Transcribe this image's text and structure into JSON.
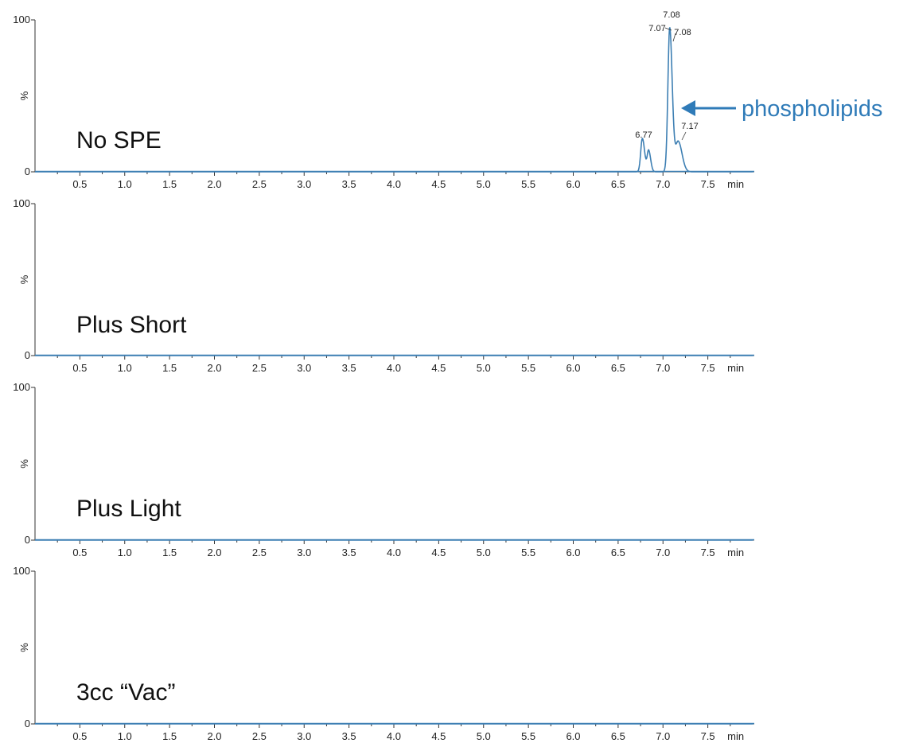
{
  "colors": {
    "trace": "#3d7fb3",
    "axis": "#333333",
    "annotation": "#2f7bb8"
  },
  "chart_data": [
    {
      "type": "line",
      "label": "No SPE",
      "xlim": [
        0,
        8.0
      ],
      "ylim": [
        0,
        100
      ],
      "xticks": [
        "0.5",
        "1.0",
        "1.5",
        "2.0",
        "2.5",
        "3.0",
        "3.5",
        "4.0",
        "4.5",
        "5.0",
        "5.5",
        "6.0",
        "6.5",
        "7.0",
        "7.5"
      ],
      "x_unit": "min",
      "y_ticks": [
        "100",
        "0"
      ],
      "ylabel": "%",
      "peaks": [
        {
          "rt": 6.77,
          "height": 22,
          "width": 0.018
        },
        {
          "rt": 6.84,
          "height": 14,
          "width": 0.016
        },
        {
          "rt": 7.075,
          "height": 95,
          "width": 0.02
        },
        {
          "rt": 7.17,
          "height": 20,
          "width": 0.03
        }
      ],
      "peak_labels": [
        "6.77",
        "7.08",
        "7.07",
        "7.08",
        "7.17"
      ],
      "annotation": "phospholipids"
    },
    {
      "type": "line",
      "label": "Plus Short",
      "xlim": [
        0,
        8.0
      ],
      "ylim": [
        0,
        100
      ],
      "xticks": [
        "0.5",
        "1.0",
        "1.5",
        "2.0",
        "2.5",
        "3.0",
        "3.5",
        "4.0",
        "4.5",
        "5.0",
        "5.5",
        "6.0",
        "6.5",
        "7.0",
        "7.5"
      ],
      "x_unit": "min",
      "y_ticks": [
        "100",
        "0"
      ],
      "ylabel": "%",
      "peaks": []
    },
    {
      "type": "line",
      "label": "Plus Light",
      "xlim": [
        0,
        8.0
      ],
      "ylim": [
        0,
        100
      ],
      "xticks": [
        "0.5",
        "1.0",
        "1.5",
        "2.0",
        "2.5",
        "3.0",
        "3.5",
        "4.0",
        "4.5",
        "5.0",
        "5.5",
        "6.0",
        "6.5",
        "7.0",
        "7.5"
      ],
      "x_unit": "min",
      "y_ticks": [
        "100",
        "0"
      ],
      "ylabel": "%",
      "peaks": []
    },
    {
      "type": "line",
      "label": "3cc “Vac”",
      "xlim": [
        0,
        8.0
      ],
      "ylim": [
        0,
        100
      ],
      "xticks": [
        "0.5",
        "1.0",
        "1.5",
        "2.0",
        "2.5",
        "3.0",
        "3.5",
        "4.0",
        "4.5",
        "5.0",
        "5.5",
        "6.0",
        "6.5",
        "7.0",
        "7.5"
      ],
      "x_unit": "min",
      "y_ticks": [
        "100",
        "0"
      ],
      "ylabel": "%",
      "peaks": []
    }
  ]
}
